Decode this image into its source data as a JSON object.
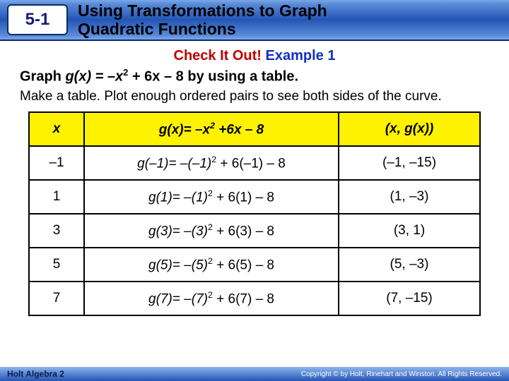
{
  "header": {
    "lesson_number": "5-1",
    "title_line1": "Using Transformations to Graph",
    "title_line2": "Quadratic Functions"
  },
  "checkit": {
    "label": "Check It Out!",
    "example": "Example 1"
  },
  "problem_prefix": "Graph ",
  "problem_func": "g(x) = –x",
  "problem_exp": "2",
  "problem_rest": " + 6x – 8 by using a table.",
  "instruction": "Make a table. Plot enough ordered pairs to see both sides of the curve.",
  "table": {
    "header_bg": "#fef200",
    "col1": "x",
    "col2_pre": "g(x)= –x",
    "col2_exp": "2",
    "col2_post": " +6x – 8",
    "col3": "(x, g(x))",
    "rows": [
      {
        "x": "–1",
        "pre": "g(–1)= –(–1)",
        "exp": "2",
        "post": " + 6(–1) – 8",
        "pair": "(–1, –15)"
      },
      {
        "x": "1",
        "pre": "g(1)= –(1)",
        "exp": "2",
        "post": " + 6(1) – 8",
        "pair": "(1, –3)"
      },
      {
        "x": "3",
        "pre": "g(3)= –(3)",
        "exp": "2",
        "post": " + 6(3) – 8",
        "pair": "(3, 1)"
      },
      {
        "x": "5",
        "pre": "g(5)= –(5)",
        "exp": "2",
        "post": " + 6(5) – 8",
        "pair": "(5, –3)"
      },
      {
        "x": "7",
        "pre": "g(7)= –(7)",
        "exp": "2",
        "post": " + 6(7) – 8",
        "pair": "(7, –15)"
      }
    ]
  },
  "footer": {
    "left": "Holt Algebra 2",
    "right": "Copyright © by Holt, Rinehart and Winston. All Rights Reserved."
  }
}
